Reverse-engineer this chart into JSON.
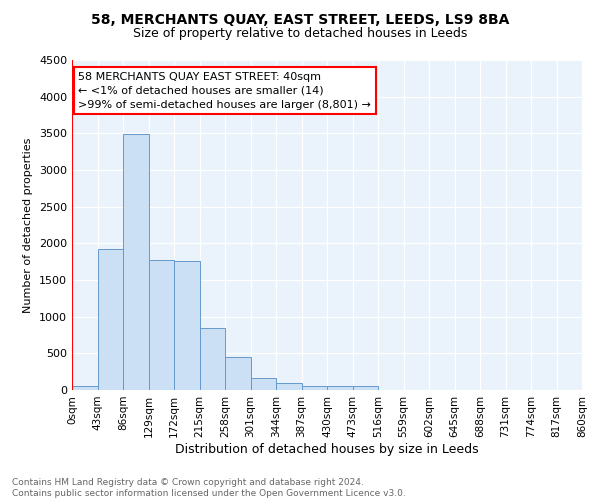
{
  "title": "58, MERCHANTS QUAY, EAST STREET, LEEDS, LS9 8BA",
  "subtitle": "Size of property relative to detached houses in Leeds",
  "xlabel": "Distribution of detached houses by size in Leeds",
  "ylabel": "Number of detached properties",
  "bin_labels": [
    "0sqm",
    "43sqm",
    "86sqm",
    "129sqm",
    "172sqm",
    "215sqm",
    "258sqm",
    "301sqm",
    "344sqm",
    "387sqm",
    "430sqm",
    "473sqm",
    "516sqm",
    "559sqm",
    "602sqm",
    "645sqm",
    "688sqm",
    "731sqm",
    "774sqm",
    "817sqm",
    "860sqm"
  ],
  "bar_heights": [
    50,
    1920,
    3490,
    1770,
    1760,
    850,
    455,
    170,
    90,
    60,
    55,
    50,
    0,
    0,
    0,
    0,
    0,
    0,
    0,
    0
  ],
  "bar_color": "#cce0f5",
  "bar_edge_color": "#6699cc",
  "ylim": [
    0,
    4500
  ],
  "yticks": [
    0,
    500,
    1000,
    1500,
    2000,
    2500,
    3000,
    3500,
    4000,
    4500
  ],
  "annotation_line1": "58 MERCHANTS QUAY EAST STREET: 40sqm",
  "annotation_line2": "← <1% of detached houses are smaller (14)",
  "annotation_line3": ">99% of semi-detached houses are larger (8,801) →",
  "footnote": "Contains HM Land Registry data © Crown copyright and database right 2024.\nContains public sector information licensed under the Open Government Licence v3.0.",
  "bg_color": "#eaf3fb",
  "title_fontsize": 10,
  "subtitle_fontsize": 9,
  "ylabel_fontsize": 8,
  "xlabel_fontsize": 9,
  "tick_fontsize": 7.5,
  "annot_fontsize": 8
}
